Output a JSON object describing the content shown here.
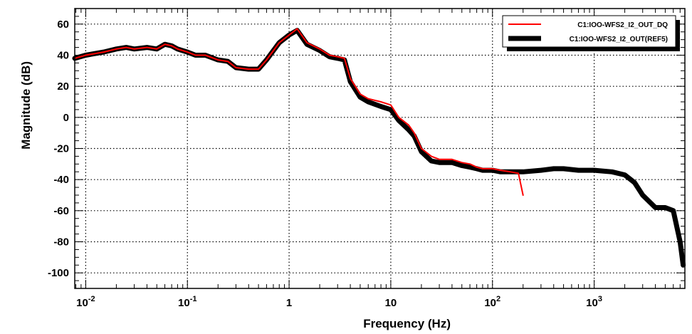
{
  "chart_data": {
    "type": "line",
    "title": "",
    "xlabel": "Frequency (Hz)",
    "ylabel": "Magnitude (dB)",
    "x_scale": "log",
    "xlim": [
      0.0078,
      7800
    ],
    "ylim": [
      -110,
      70
    ],
    "grid": true,
    "grid_style": "dotted",
    "legend_position": "top-right",
    "x_ticks": [
      {
        "value": 0.01,
        "base": "10",
        "exp": "-2"
      },
      {
        "value": 0.1,
        "base": "10",
        "exp": "-1"
      },
      {
        "value": 1,
        "base": "1",
        "exp": ""
      },
      {
        "value": 10,
        "base": "10",
        "exp": ""
      },
      {
        "value": 100,
        "base": "10",
        "exp": "2"
      },
      {
        "value": 1000,
        "base": "10",
        "exp": "3"
      }
    ],
    "y_ticks": [
      {
        "value": 60,
        "label": "60"
      },
      {
        "value": 40,
        "label": "40"
      },
      {
        "value": 20,
        "label": "20"
      },
      {
        "value": 0,
        "label": "0"
      },
      {
        "value": -20,
        "label": "-20"
      },
      {
        "value": -40,
        "label": "-40"
      },
      {
        "value": -60,
        "label": "-60"
      },
      {
        "value": -80,
        "label": "-80"
      },
      {
        "value": -100,
        "label": "-100"
      }
    ],
    "series": [
      {
        "name": "C1:IOO-WFS2_I2_OUT_DQ",
        "color": "#ff0000",
        "style": "thin-line",
        "x": [
          0.0078,
          0.01,
          0.015,
          0.02,
          0.025,
          0.03,
          0.04,
          0.05,
          0.06,
          0.07,
          0.08,
          0.1,
          0.12,
          0.15,
          0.2,
          0.25,
          0.3,
          0.4,
          0.5,
          0.6,
          0.8,
          1.0,
          1.2,
          1.5,
          2.0,
          2.5,
          3.0,
          3.5,
          4.0,
          5.0,
          6.0,
          8.0,
          10,
          12,
          15,
          17,
          20,
          25,
          30,
          40,
          50,
          60,
          70,
          80,
          100,
          120,
          150,
          180,
          200
        ],
        "y": [
          38,
          40,
          42,
          44,
          45,
          44,
          45,
          44,
          47,
          46,
          44,
          42,
          40,
          40,
          37,
          36,
          32,
          31,
          31,
          37,
          48,
          53,
          57,
          48,
          44,
          40,
          39,
          38,
          25,
          15,
          12,
          10,
          8,
          0,
          -5,
          -10,
          -20,
          -25,
          -27,
          -27,
          -29,
          -30,
          -32,
          -33,
          -33,
          -34,
          -35,
          -36,
          -50
        ]
      },
      {
        "name": "C1:IOO-WFS2_I2_OUT(REF5)",
        "color": "#000000",
        "style": "thick-band",
        "x": [
          0.0078,
          0.01,
          0.015,
          0.02,
          0.025,
          0.03,
          0.04,
          0.05,
          0.06,
          0.07,
          0.08,
          0.1,
          0.12,
          0.15,
          0.2,
          0.25,
          0.3,
          0.4,
          0.5,
          0.6,
          0.8,
          1.0,
          1.2,
          1.5,
          2.0,
          2.5,
          3.0,
          3.5,
          4.0,
          5.0,
          6.0,
          8.0,
          10,
          12,
          15,
          17,
          20,
          25,
          30,
          40,
          50,
          60,
          70,
          80,
          100,
          120,
          150,
          200,
          300,
          400,
          500,
          700,
          1000,
          1500,
          2000,
          2500,
          3000,
          4000,
          5000,
          6000,
          7000,
          7500
        ],
        "y": [
          38,
          40,
          42,
          44,
          45,
          44,
          45,
          44,
          47,
          46,
          44,
          42,
          40,
          40,
          37,
          36,
          32,
          31,
          31,
          37,
          48,
          53,
          56,
          47,
          43,
          39,
          38,
          37,
          23,
          13,
          10,
          7,
          5,
          -2,
          -8,
          -12,
          -22,
          -28,
          -29,
          -29,
          -31,
          -32,
          -33,
          -34,
          -34,
          -35,
          -35,
          -35,
          -34,
          -33,
          -33,
          -34,
          -34,
          -35,
          -37,
          -42,
          -50,
          -58,
          -58,
          -60,
          -80,
          -95
        ]
      }
    ]
  }
}
